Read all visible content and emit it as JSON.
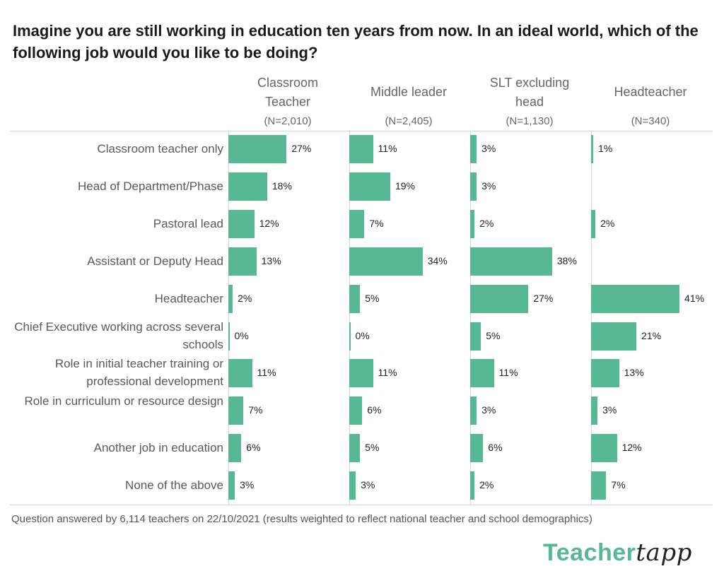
{
  "chart_data": {
    "type": "bar",
    "orientation": "horizontal",
    "layout": "small-multiples",
    "title": "Imagine you are still working in education ten years from now. In an ideal world, which of the following job would you like to be doing?",
    "categories": [
      "Classroom teacher only",
      "Head of Department/Phase",
      "Pastoral lead",
      "Assistant or Deputy Head",
      "Headteacher",
      "Chief Executive working across several schools",
      "Role in initial teacher training or professional development",
      "Role in curriculum or resource design",
      "Another job in education",
      "None of the above"
    ],
    "series": [
      {
        "name": "Classroom Teacher",
        "n": "(N=2,010)",
        "values": [
          27,
          18,
          12,
          13,
          2,
          0,
          11,
          7,
          6,
          3
        ]
      },
      {
        "name": "Middle leader",
        "n": "(N=2,405)",
        "values": [
          11,
          19,
          7,
          34,
          5,
          0,
          11,
          6,
          5,
          3
        ]
      },
      {
        "name": "SLT excluding head",
        "n": "(N=1,130)",
        "values": [
          3,
          3,
          2,
          38,
          27,
          5,
          11,
          3,
          6,
          2
        ]
      },
      {
        "name": "Headteacher",
        "n": "(N=340)",
        "values": [
          1,
          null,
          2,
          null,
          41,
          21,
          13,
          3,
          12,
          7
        ]
      }
    ],
    "unit": "%",
    "bar_color": "#57b894",
    "grid": false
  },
  "footnote": "Question answered by 6,114 teachers on 22/10/2021 (results weighted to reflect national teacher and school demographics)",
  "logo": {
    "part1": "Teacher",
    "part2": "tapp"
  }
}
